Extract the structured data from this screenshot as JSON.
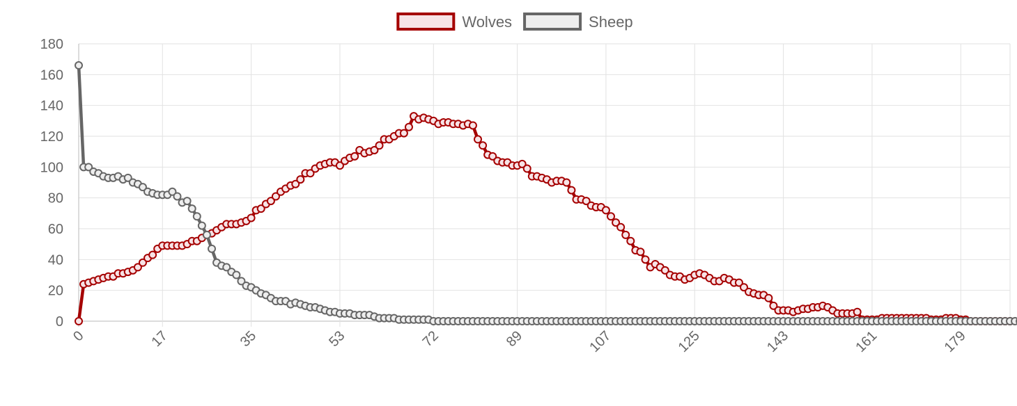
{
  "chart_data": {
    "type": "line",
    "title": "",
    "xlabel": "",
    "ylabel": "",
    "ylim": [
      0,
      180
    ],
    "yticks": [
      0,
      20,
      40,
      60,
      80,
      100,
      120,
      140,
      160,
      180
    ],
    "xlim": [
      0,
      189
    ],
    "xticks": [
      0,
      17,
      35,
      53,
      72,
      89,
      107,
      125,
      143,
      161,
      179
    ],
    "grid": true,
    "legend_position": "top-center",
    "series": [
      {
        "name": "Wolves",
        "color": "#a50000",
        "fill": "#f7e3e6",
        "values": [
          0,
          24,
          25,
          26,
          27,
          28,
          29,
          29,
          31,
          31,
          32,
          33,
          35,
          38,
          41,
          43,
          47,
          49,
          49,
          49,
          49,
          49,
          50,
          52,
          52,
          54,
          56,
          57,
          59,
          61,
          63,
          63,
          63,
          64,
          65,
          67,
          72,
          73,
          76,
          78,
          81,
          84,
          86,
          88,
          89,
          92,
          96,
          96,
          99,
          101,
          102,
          103,
          103,
          101,
          104,
          106,
          107,
          111,
          109,
          110,
          111,
          114,
          118,
          118,
          120,
          122,
          122,
          126,
          133,
          131,
          132,
          131,
          130,
          128,
          129,
          129,
          128,
          128,
          127,
          128,
          127,
          118,
          114,
          108,
          107,
          104,
          103,
          103,
          101,
          101,
          102,
          99,
          94,
          94,
          93,
          92,
          90,
          91,
          91,
          90,
          85,
          79,
          79,
          78,
          75,
          74,
          74,
          72,
          68,
          64,
          61,
          56,
          52,
          46,
          45,
          40,
          35,
          37,
          35,
          33,
          30,
          29,
          29,
          27,
          28,
          30,
          31,
          30,
          28,
          26,
          26,
          28,
          27,
          25,
          25,
          22,
          19,
          18,
          17,
          17,
          15,
          10,
          7,
          7,
          7,
          6,
          7,
          8,
          8,
          9,
          9,
          10,
          9,
          7,
          5,
          5,
          5,
          5,
          6,
          1,
          1,
          1,
          1,
          2,
          2,
          2,
          2,
          2,
          2,
          2,
          2,
          2,
          2,
          1,
          1,
          1,
          2,
          2,
          2,
          1,
          1,
          0,
          0,
          0,
          0,
          0,
          0,
          0,
          0,
          0
        ]
      },
      {
        "name": "Sheep",
        "color": "#666666",
        "fill": "#eeeeee",
        "values": [
          166,
          100,
          100,
          97,
          96,
          94,
          93,
          93,
          94,
          92,
          93,
          90,
          89,
          87,
          84,
          83,
          82,
          82,
          82,
          84,
          81,
          77,
          78,
          73,
          68,
          62,
          56,
          47,
          38,
          36,
          35,
          32,
          30,
          26,
          23,
          22,
          20,
          18,
          17,
          15,
          13,
          13,
          13,
          11,
          12,
          11,
          10,
          9,
          9,
          8,
          7,
          6,
          6,
          5,
          5,
          5,
          4,
          4,
          4,
          4,
          3,
          2,
          2,
          2,
          2,
          1,
          1,
          1,
          1,
          1,
          1,
          1,
          0,
          0,
          0,
          0,
          0,
          0,
          0,
          0,
          0,
          0,
          0,
          0,
          0,
          0,
          0,
          0,
          0,
          0,
          0,
          0,
          0,
          0,
          0,
          0,
          0,
          0,
          0,
          0,
          0,
          0,
          0,
          0,
          0,
          0,
          0,
          0,
          0,
          0,
          0,
          0,
          0,
          0,
          0,
          0,
          0,
          0,
          0,
          0,
          0,
          0,
          0,
          0,
          0,
          0,
          0,
          0,
          0,
          0,
          0,
          0,
          0,
          0,
          0,
          0,
          0,
          0,
          0,
          0,
          0,
          0,
          0,
          0,
          0,
          0,
          0,
          0,
          0,
          0,
          0,
          0,
          0,
          0,
          0,
          0,
          0,
          0,
          0,
          0,
          0,
          0,
          0,
          0,
          0,
          0,
          0,
          0,
          0,
          0,
          0,
          0,
          0,
          0,
          0,
          0,
          0,
          0,
          0,
          0,
          0,
          0,
          0,
          0,
          0,
          0,
          0,
          0,
          0,
          0,
          0,
          0,
          0,
          0,
          0,
          0
        ]
      }
    ]
  }
}
